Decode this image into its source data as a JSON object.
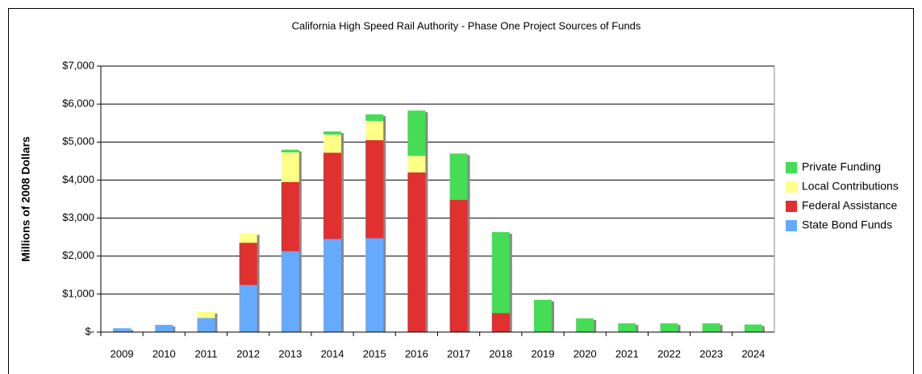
{
  "chart_data": {
    "type": "stacked_bar",
    "title": "California High Speed Rail Authority - Phase One Project Sources of Funds",
    "y_label": "Millions of 2008 Dollars",
    "categories": [
      "2009",
      "2010",
      "2011",
      "2012",
      "2013",
      "2014",
      "2015",
      "2016",
      "2017",
      "2018",
      "2019",
      "2020",
      "2021",
      "2022",
      "2023",
      "2024"
    ],
    "series": [
      {
        "name": "State Bond Funds",
        "color": "#66aaff",
        "values": [
          100,
          190,
          370,
          1240,
          2130,
          2450,
          2470,
          0,
          0,
          0,
          0,
          0,
          0,
          0,
          0,
          0
        ]
      },
      {
        "name": "Federal Assistance",
        "color": "#e03030",
        "values": [
          0,
          0,
          0,
          1110,
          1820,
          2270,
          2580,
          4200,
          3480,
          500,
          0,
          0,
          0,
          0,
          0,
          0
        ]
      },
      {
        "name": "Local Contributions",
        "color": "#ffff88",
        "values": [
          0,
          0,
          160,
          250,
          780,
          480,
          510,
          440,
          0,
          0,
          0,
          0,
          0,
          0,
          0,
          0
        ]
      },
      {
        "name": "Private Funding",
        "color": "#44dd55",
        "values": [
          0,
          0,
          0,
          0,
          70,
          80,
          170,
          1190,
          1220,
          2130,
          850,
          360,
          230,
          230,
          230,
          200
        ]
      }
    ],
    "ylim": [
      0,
      7000
    ],
    "yticks": [
      {
        "value": 0,
        "label": "$-"
      },
      {
        "value": 1000,
        "label": "$1,000"
      },
      {
        "value": 2000,
        "label": "$2,000"
      },
      {
        "value": 3000,
        "label": "$3,000"
      },
      {
        "value": 4000,
        "label": "$4,000"
      },
      {
        "value": 5000,
        "label": "$5,000"
      },
      {
        "value": 6000,
        "label": "$6,000"
      },
      {
        "value": 7000,
        "label": "$7,000"
      }
    ],
    "grid": true,
    "legend": "right"
  }
}
